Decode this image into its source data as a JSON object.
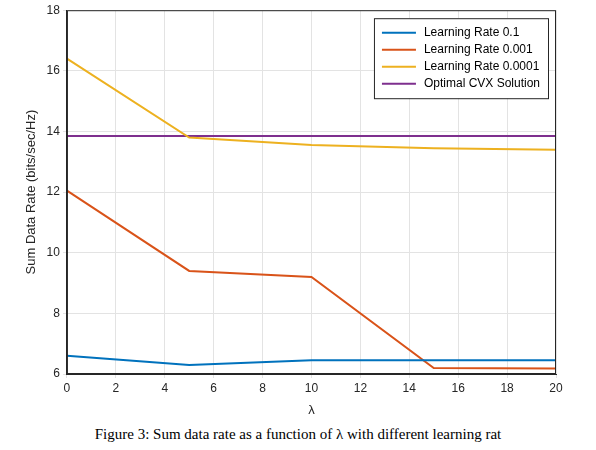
{
  "chart_data": {
    "type": "line",
    "caption": "Figure 3: Sum data rate as a function of λ with different learning rat",
    "x_label": "λ",
    "y_label": "Sum Data Rate (bits/sec/Hz)",
    "x": [
      0,
      5,
      10,
      15,
      20
    ],
    "series": [
      {
        "name": "Learning Rate 0.1",
        "color": "#0072BD",
        "values": [
          6.6,
          6.3,
          6.45,
          6.45,
          6.45
        ]
      },
      {
        "name": "Learning Rate 0.001",
        "color": "#D95319",
        "values": [
          12.05,
          9.4,
          9.2,
          6.2,
          6.18
        ]
      },
      {
        "name": "Learning Rate 0.0001",
        "color": "#EDB120",
        "values": [
          16.4,
          13.8,
          13.55,
          13.45,
          13.4
        ]
      },
      {
        "name": "Optimal CVX Solution",
        "color": "#7E2F8E",
        "values": [
          13.85,
          13.85,
          13.85,
          13.85,
          13.85
        ]
      }
    ],
    "xlim": [
      0,
      20
    ],
    "xticks": [
      0,
      2,
      4,
      6,
      8,
      10,
      12,
      14,
      16,
      18,
      20
    ],
    "ylim": [
      6,
      18
    ],
    "yticks": [
      6,
      8,
      10,
      12,
      14,
      16,
      18
    ],
    "grid": true,
    "legend": "upper right"
  }
}
